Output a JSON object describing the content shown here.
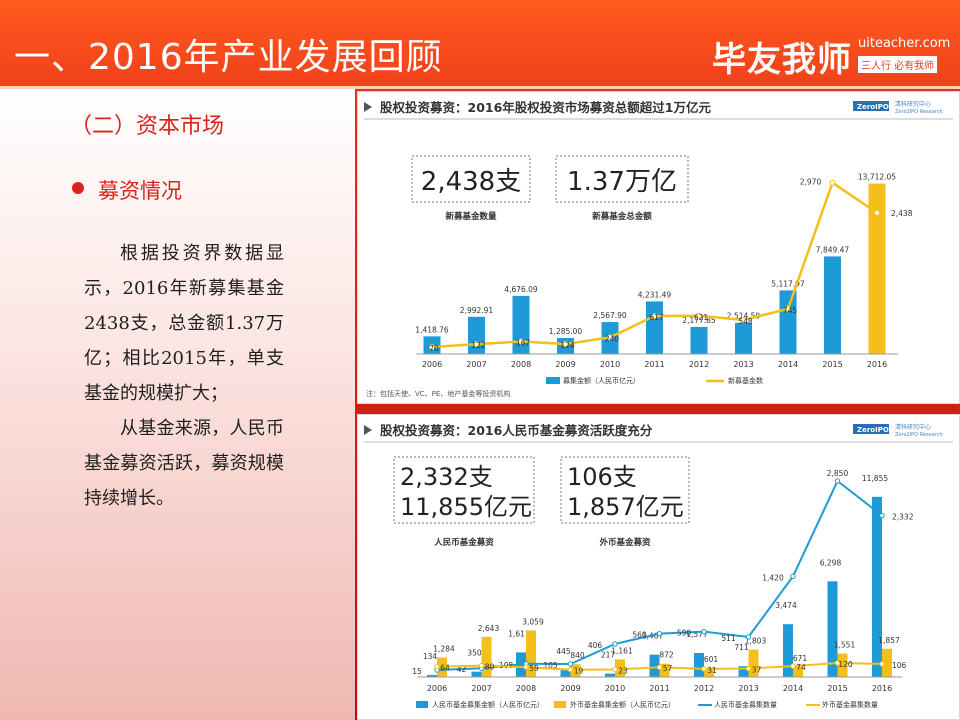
{
  "header": {
    "title": "一、2016年产业发展回顾",
    "logo": "毕友我师",
    "site": "uiteacher.com",
    "slogan": "三人行 必有我师"
  },
  "left": {
    "section_title": "（二）资本市场",
    "subsection_title": "募资情况",
    "paragraph1": "根据投资界数据显示，2016年新募集基金2438支，总金额1.37万亿；相比2015年，单支基金的规模扩大；",
    "paragraph2": "从基金来源，人民币基金募资活跃，募资规模持续增长。"
  },
  "colors": {
    "blue": "#1e9ad6",
    "gold": "#f5bf19",
    "red": "#d8221c",
    "orange": "#f1401a"
  },
  "chart_data": [
    {
      "type": "bar",
      "title": "股权投资募资：2016年股权投资市场募资总额超过1万亿元",
      "brand_logo": "ZeroIPO",
      "brand_name": "清科研究中心",
      "brand_name_en": "Zero2IPO Research",
      "kpis": [
        {
          "value": "2,438支",
          "label": "新募基金数量"
        },
        {
          "value": "1.37万亿",
          "label": "新募基金总金额"
        }
      ],
      "categories": [
        "2006",
        "2007",
        "2008",
        "2009",
        "2010",
        "2011",
        "2012",
        "2013",
        "2014",
        "2015",
        "2016"
      ],
      "series": [
        {
          "name": "募集金额（人民币亿元）",
          "kind": "bar",
          "color": "#1e9ad6",
          "values": [
            1418.76,
            2992.91,
            4676.09,
            1285.0,
            2567.9,
            4231.49,
            2177.85,
            2514.5,
            5117.97,
            7849.47,
            13712.05
          ],
          "labels": [
            "1,418.76",
            "2,992.91",
            "4,676.09",
            "1,285.00",
            "2,567.90",
            "4,231.49",
            "2,177.85",
            "2,514.50",
            "5,117.97",
            "7,849.47",
            "13,712.05"
          ]
        },
        {
          "name": "新募基金数",
          "kind": "line",
          "color": "#f5bf19",
          "values": [
            70,
            122,
            167,
            124,
            240,
            617,
            621,
            548,
            745,
            2970,
            2438
          ],
          "labels": [
            "70",
            "122",
            "167",
            "124",
            "240",
            "617",
            "621",
            "548",
            "745",
            "2,970",
            "2,438"
          ]
        }
      ],
      "bar_colors": [
        "#1e9ad6",
        "#1e9ad6",
        "#1e9ad6",
        "#1e9ad6",
        "#1e9ad6",
        "#1e9ad6",
        "#1e9ad6",
        "#1e9ad6",
        "#1e9ad6",
        "#1e9ad6",
        "#f5bf19"
      ],
      "note": "注：包括天使、VC、PE、地产基金等投资机构",
      "legend_position": "bottom"
    },
    {
      "type": "bar",
      "title": "股权投资募资：2016人民币基金募资活跃度充分",
      "brand_logo": "ZeroIPO",
      "brand_name": "清科研究中心",
      "brand_name_en": "Zero2IPO Research",
      "kpis": [
        {
          "value_line1": "2,332支",
          "value_line2": "11,855亿元",
          "label": "人民币基金募资"
        },
        {
          "value_line1": "106支",
          "value_line2": "1,857亿元",
          "label": "外币基金募资"
        }
      ],
      "categories": [
        "2006",
        "2007",
        "2008",
        "2009",
        "2010",
        "2011",
        "2012",
        "2013",
        "2014",
        "2015",
        "2016"
      ],
      "series": [
        {
          "name": "人民币基金募集金额（人民币亿元）",
          "kind": "bar",
          "color": "#1e9ad6",
          "values": [
            134,
            350,
            1617,
            445,
            217,
            1467,
            1577,
            711,
            3474,
            6298,
            11855
          ],
          "labels": [
            "134",
            "350",
            "1,617",
            "445",
            "217",
            "1,467",
            "1,577",
            "711",
            "3,474",
            "6,298",
            "11,855"
          ]
        },
        {
          "name": "外币基金募集金额（人民币亿元）",
          "kind": "bar",
          "color": "#f5bf19",
          "values": [
            1284,
            2643,
            3059,
            840,
            1161,
            872,
            601,
            1803,
            671,
            1551,
            1857
          ],
          "labels": [
            "1,284",
            "2,643",
            "3,059",
            "840",
            "1,161",
            "872",
            "601",
            "1,803",
            "671",
            "1,551",
            "1,857"
          ]
        },
        {
          "name": "人民币基金募集数量",
          "kind": "line",
          "color": "#1e9ad6",
          "values": [
            15,
            42,
            108,
            105,
            406,
            560,
            590,
            511,
            1420,
            2850,
            2332
          ],
          "labels": [
            "15",
            "42",
            "108",
            "105",
            "406",
            "560",
            "590",
            "511",
            "1,420",
            "2,850",
            "2,332"
          ]
        },
        {
          "name": "外币基金募集数量",
          "kind": "line",
          "color": "#f5bf19",
          "values": [
            64,
            80,
            59,
            19,
            23,
            57,
            31,
            37,
            74,
            120,
            106
          ],
          "labels": [
            "64",
            "80",
            "59",
            "19",
            "23",
            "57",
            "31",
            "37",
            "74",
            "120",
            "106"
          ]
        }
      ],
      "legend_position": "bottom"
    }
  ]
}
